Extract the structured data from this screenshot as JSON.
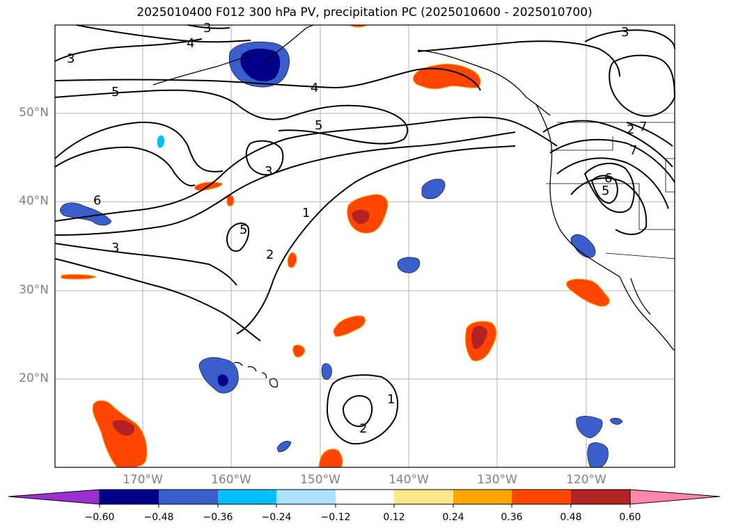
{
  "title": "2025010400 F012 300 hPa PV, precipitation PC (2025010600 - 2025010700)",
  "latitude_labels": [
    "50°N",
    "40°N",
    "30°N",
    "20°N"
  ],
  "longitude_labels": [
    "170°W",
    "160°W",
    "150°W",
    "140°W",
    "130°W",
    "120°W"
  ],
  "colorbar": {
    "ticks": [
      "−0.60",
      "−0.48",
      "−0.36",
      "−0.24",
      "−0.12",
      "0.12",
      "0.24",
      "0.36",
      "0.48",
      "0.60"
    ],
    "colors": [
      "#9b30d0",
      "#00008b",
      "#3a5fcd",
      "#00bfff",
      "#aee0ff",
      "#ffffff",
      "#ffe88c",
      "#ffa500",
      "#ff4500",
      "#b22222",
      "#ff88aa"
    ]
  },
  "contour_labels": [
    "3",
    "4",
    "3",
    "5",
    "4",
    "5",
    "3",
    "6",
    "5",
    "1",
    "2",
    "3",
    "2",
    "1",
    "5",
    "6",
    "7",
    "2",
    "7",
    "3"
  ],
  "colors": {
    "contour": "#000000",
    "coast": "#000000",
    "grid": "#b0b0b0",
    "axis_labels": "#808080"
  }
}
